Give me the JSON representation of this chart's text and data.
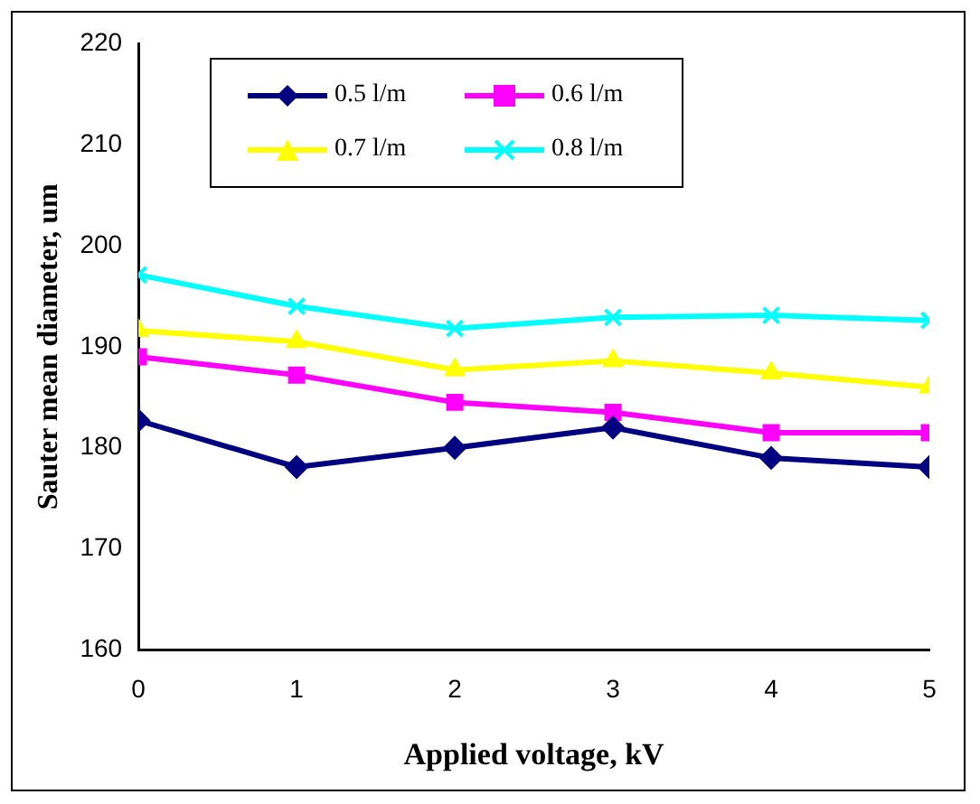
{
  "chart_data": {
    "type": "line",
    "xlabel": "Applied voltage, kV",
    "ylabel": "Sauter mean diameter, um",
    "x": [
      0,
      1,
      2,
      3,
      4,
      5
    ],
    "series": [
      {
        "name": "0.5 l/m",
        "color": "#000080",
        "marker": "diamond",
        "values": [
          182.7,
          178.1,
          180.0,
          182.0,
          179.0,
          178.1
        ]
      },
      {
        "name": "0.6 l/m",
        "color": "#ff00ff",
        "marker": "square",
        "values": [
          189.0,
          187.2,
          184.5,
          183.5,
          181.5,
          181.5
        ]
      },
      {
        "name": "0.7 l/m",
        "color": "#ffff00",
        "marker": "triangle",
        "values": [
          191.6,
          190.5,
          187.7,
          188.6,
          187.4,
          186.0
        ]
      },
      {
        "name": "0.8 l/m",
        "color": "#00ffff",
        "marker": "cross",
        "values": [
          197.1,
          194.0,
          191.8,
          192.9,
          193.1,
          192.6
        ]
      }
    ],
    "xlim": [
      0,
      5
    ],
    "xticks": [
      0,
      1,
      2,
      3,
      4,
      5
    ],
    "ylim": [
      160,
      220
    ],
    "yticks": [
      160,
      170,
      180,
      190,
      200,
      210,
      220
    ],
    "grid": false,
    "legend": "top"
  }
}
